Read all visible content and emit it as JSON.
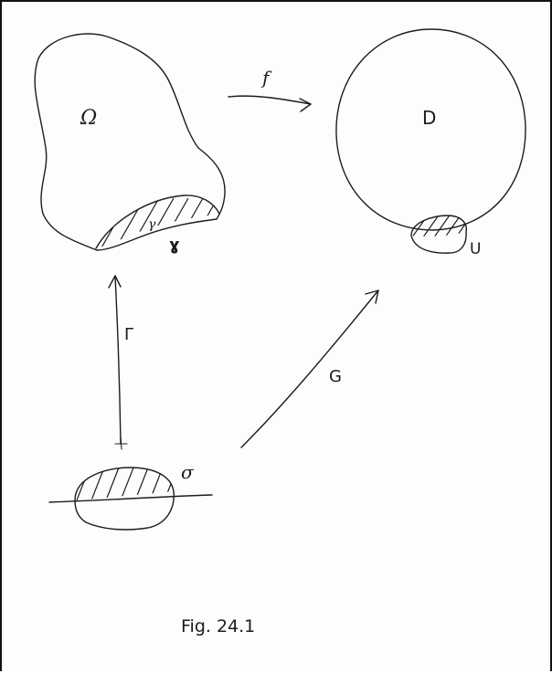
{
  "labels": {
    "omega": "Ω",
    "gamma_small": "γ",
    "gamma_vee": "ɣ",
    "f": "f",
    "D": "D",
    "U": "U",
    "Gamma": "Γ",
    "G": "G",
    "sigma": "σ",
    "caption": "Fig.  24.1"
  }
}
